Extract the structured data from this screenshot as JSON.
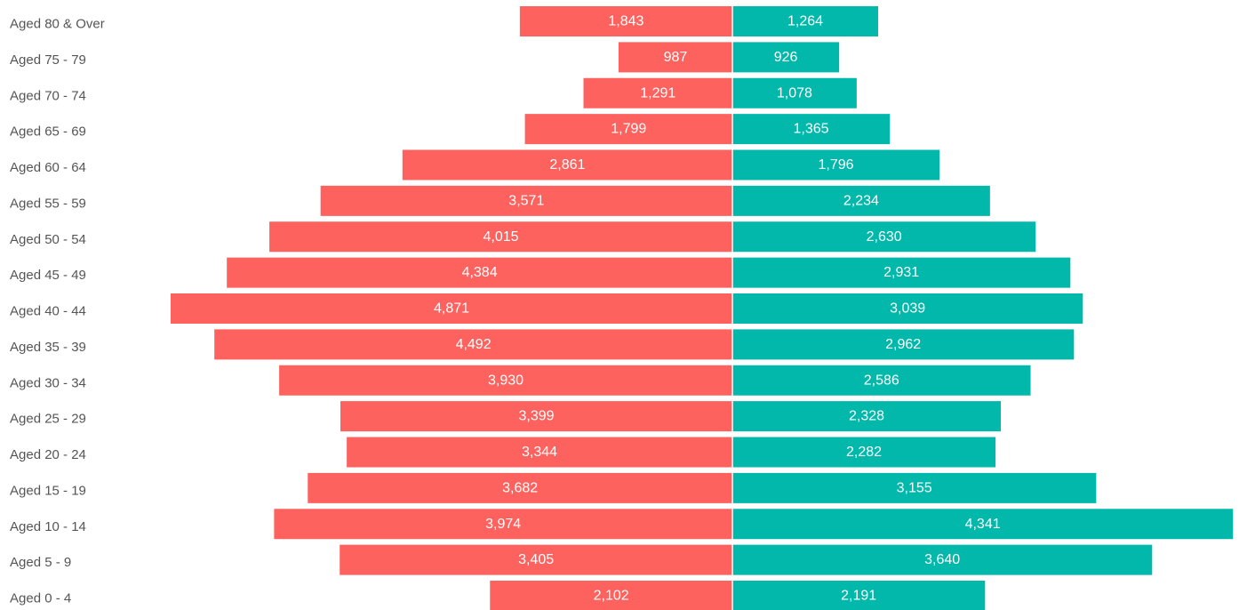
{
  "chart_data": {
    "type": "bar",
    "orientation": "horizontal-diverging",
    "title": "",
    "xlabel": "",
    "ylabel": "",
    "grid": false,
    "legend": "none",
    "categories": [
      "Aged 80 & Over",
      "Aged 75 - 79",
      "Aged 70 - 74",
      "Aged 65 - 69",
      "Aged 60 - 64",
      "Aged 55 - 59",
      "Aged 50 - 54",
      "Aged 45 - 49",
      "Aged 40 - 44",
      "Aged 35 - 39",
      "Aged 30 - 34",
      "Aged 25 - 29",
      "Aged 20 - 24",
      "Aged 15 - 19",
      "Aged 10 - 14",
      "Aged 5 - 9",
      "Aged 0 - 4"
    ],
    "value_labels_left": [
      "1,843",
      "987",
      "1,291",
      "1,799",
      "2,861",
      "3,571",
      "4,015",
      "4,384",
      "4,871",
      "4,492",
      "3,930",
      "3,399",
      "3,344",
      "3,682",
      "3,974",
      "3,405",
      "2,102"
    ],
    "value_labels_right": [
      "1,264",
      "926",
      "1,078",
      "1,365",
      "1,796",
      "2,234",
      "2,630",
      "2,931",
      "3,039",
      "2,962",
      "2,586",
      "2,328",
      "2,282",
      "3,155",
      "4,341",
      "3,640",
      "2,191"
    ],
    "series": [
      {
        "side": "left",
        "color": "#fd625e",
        "values": [
          1843,
          987,
          1291,
          1799,
          2861,
          3571,
          4015,
          4384,
          4871,
          4492,
          3930,
          3399,
          3344,
          3682,
          3974,
          3405,
          2102
        ]
      },
      {
        "side": "right",
        "color": "#01b8aa",
        "values": [
          1264,
          926,
          1078,
          1365,
          1796,
          2234,
          2630,
          2931,
          3039,
          2962,
          2586,
          2328,
          2282,
          3155,
          4341,
          3640,
          2191
        ]
      }
    ],
    "xlim": [
      0,
      4871
    ]
  }
}
